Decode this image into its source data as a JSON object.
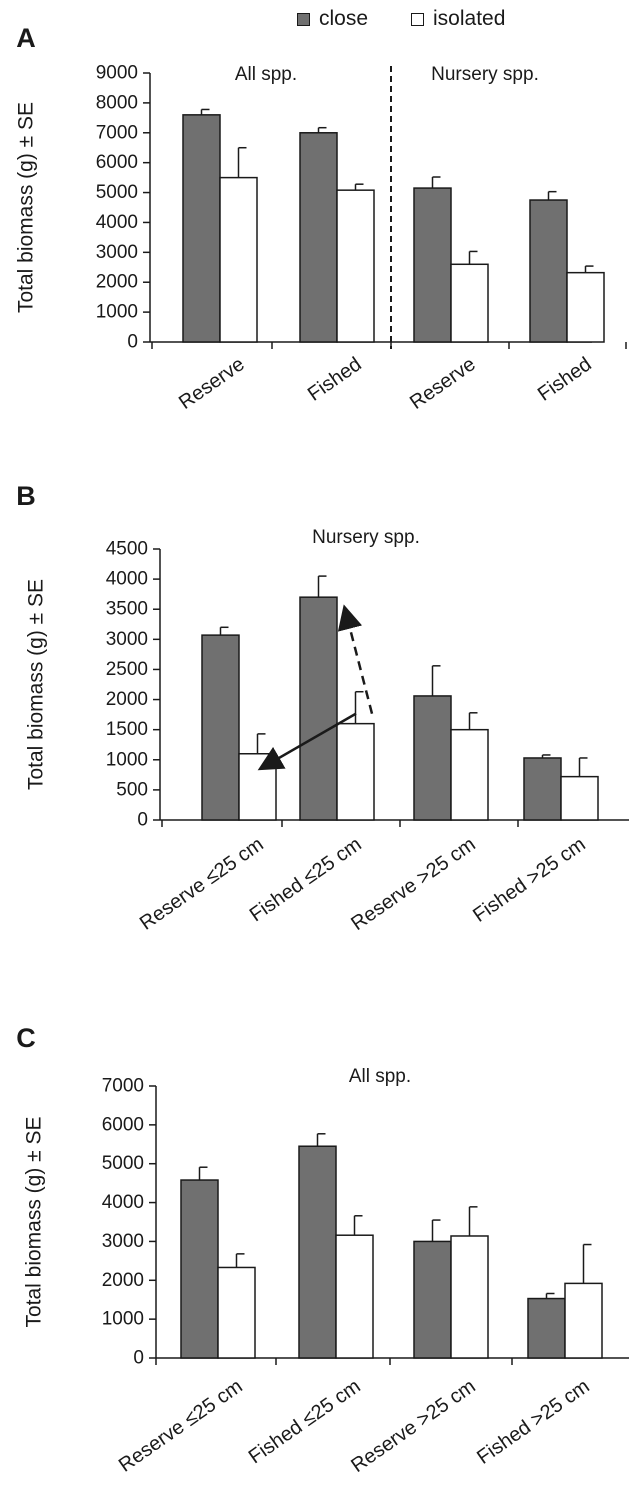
{
  "legend": {
    "close": {
      "label": "close",
      "color": "#707070"
    },
    "isolated": {
      "label": "isolated",
      "color": "#ffffff"
    }
  },
  "chart_data": [
    {
      "panel": "A",
      "type": "bar",
      "ylabel": "Total biomass (g) ± SE",
      "ylim": [
        0,
        9000
      ],
      "yticks": [
        0,
        1000,
        2000,
        3000,
        4000,
        5000,
        6000,
        7000,
        8000,
        9000
      ],
      "groups": [
        "All spp.",
        "Nursery spp."
      ],
      "categories": [
        "Reserve",
        "Fished",
        "Reserve",
        "Fished"
      ],
      "series": [
        {
          "name": "close",
          "values": [
            7600,
            7000,
            5150,
            4750
          ],
          "se": [
            180,
            170,
            370,
            280
          ]
        },
        {
          "name": "isolated",
          "values": [
            5500,
            5080,
            2600,
            2320
          ],
          "se": [
            1000,
            200,
            430,
            220
          ]
        }
      ],
      "grid": false
    },
    {
      "panel": "B",
      "type": "bar",
      "title": "Nursery spp.",
      "ylabel": "Total biomass (g) ± SE",
      "ylim": [
        0,
        4500
      ],
      "yticks": [
        0,
        500,
        1000,
        1500,
        2000,
        2500,
        3000,
        3500,
        4000,
        4500
      ],
      "categories": [
        "Reserve ≤25 cm",
        "Fished ≤25 cm",
        "Reserve >25 cm",
        "Fished >25 cm"
      ],
      "series": [
        {
          "name": "close",
          "values": [
            3070,
            3700,
            2060,
            1030
          ],
          "se": [
            130,
            350,
            500,
            50
          ]
        },
        {
          "name": "isolated",
          "values": [
            1100,
            1600,
            1500,
            720
          ],
          "se": [
            330,
            530,
            280,
            310
          ]
        }
      ],
      "grid": false
    },
    {
      "panel": "C",
      "type": "bar",
      "title": "All spp.",
      "ylabel": "Total biomass (g) ± SE",
      "ylim": [
        0,
        7000
      ],
      "yticks": [
        0,
        1000,
        2000,
        3000,
        4000,
        5000,
        6000,
        7000
      ],
      "categories": [
        "Reserve ≤25 cm",
        "Fished ≤25 cm",
        "Reserve >25 cm",
        "Fished >25 cm"
      ],
      "series": [
        {
          "name": "close",
          "values": [
            4580,
            5450,
            3000,
            1530
          ],
          "se": [
            330,
            320,
            550,
            130
          ]
        },
        {
          "name": "isolated",
          "values": [
            2330,
            3160,
            3140,
            1920
          ],
          "se": [
            350,
            500,
            750,
            1000
          ]
        }
      ],
      "grid": false
    }
  ]
}
